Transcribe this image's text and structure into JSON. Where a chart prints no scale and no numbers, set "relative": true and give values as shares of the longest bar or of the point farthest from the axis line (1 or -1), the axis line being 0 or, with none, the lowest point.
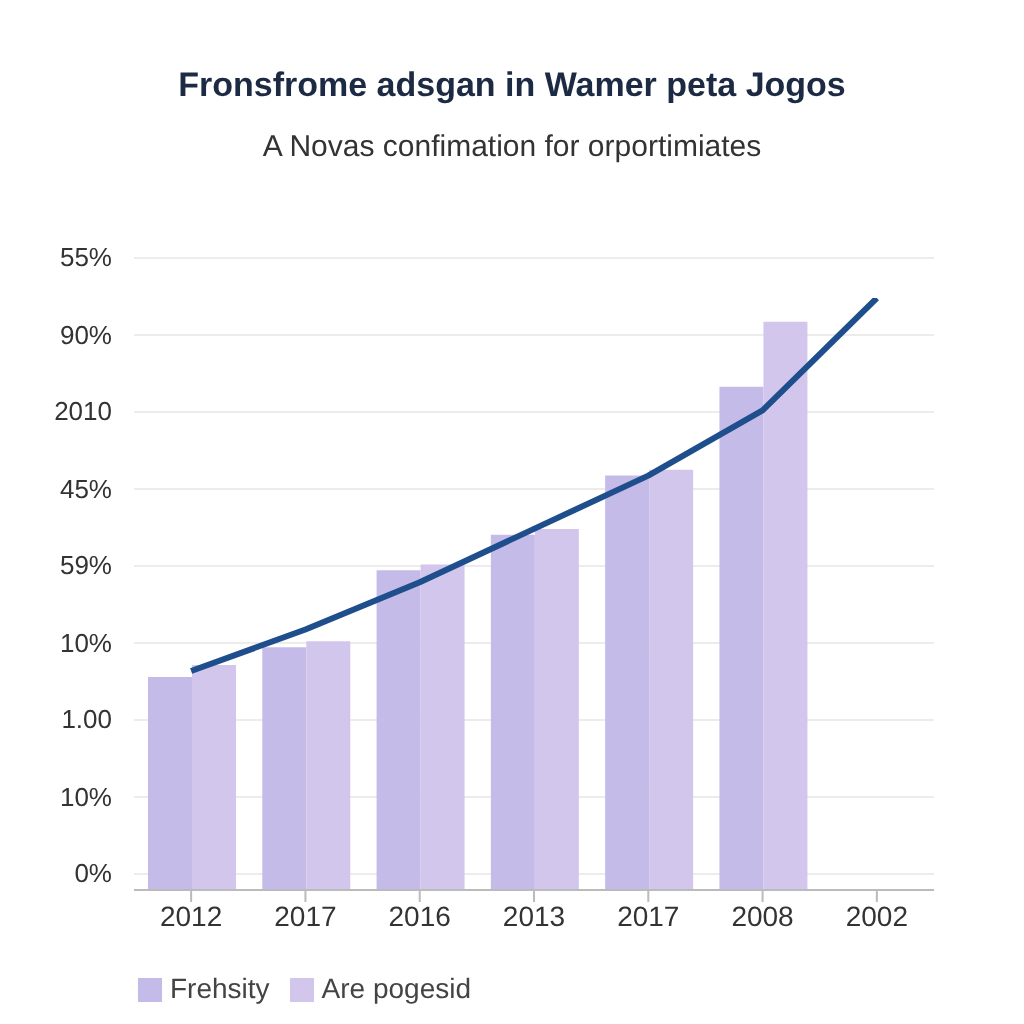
{
  "chart_data": {
    "type": "bar",
    "title": "Fronsfrome adsgan in Wamer peta Jogos",
    "subtitle": "A Novas confimation for orportimiates",
    "categories": [
      "2012",
      "2017",
      "2016",
      "2013",
      "2017",
      "2008",
      "2002"
    ],
    "relative": true,
    "annotations": [
      "55%",
      "90%",
      "2010",
      "45%",
      "59%",
      "10%",
      "1.00",
      "10%",
      "0%"
    ],
    "series": [
      {
        "name": "Frehsity",
        "color": "#c5bbe8",
        "values": [
          0.36,
          0.41,
          0.54,
          0.6,
          0.7,
          0.85,
          null
        ]
      },
      {
        "name": "Are pogesid",
        "color": "#d2c6ec",
        "values": [
          0.38,
          0.42,
          0.55,
          0.61,
          0.71,
          0.96,
          null
        ]
      },
      {
        "type": "line",
        "color": "#1f4e8c",
        "values": [
          0.37,
          0.44,
          0.52,
          0.61,
          0.7,
          0.81,
          1
        ]
      }
    ],
    "grid": "y",
    "legend": "bottom left",
    "marker": "none"
  }
}
